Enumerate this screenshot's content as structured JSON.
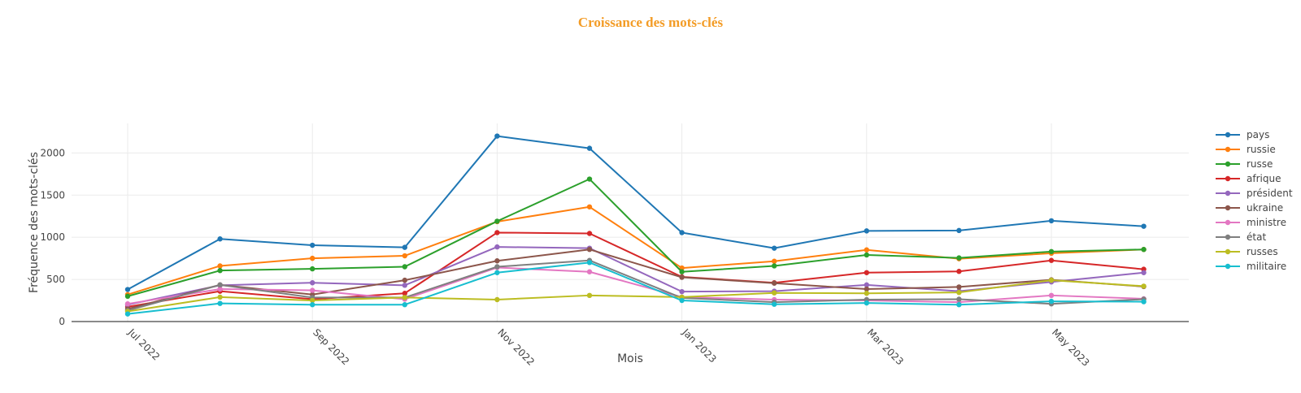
{
  "title": "Croissance des mots-clés",
  "colors": {
    "title": "#f39c26",
    "grid": "#ebebeb",
    "axis": "#444444",
    "series": [
      "#1f77b4",
      "#ff7f0e",
      "#2ca02c",
      "#d62728",
      "#9467bd",
      "#8c564b",
      "#e377c2",
      "#7f7f7f",
      "#bcbd22",
      "#17becf"
    ]
  },
  "chart_data": {
    "type": "line",
    "xlabel": "Mois",
    "ylabel": "Fréquence des mots-clés",
    "ylim": [
      0,
      2350
    ],
    "yticks": [
      0,
      500,
      1000,
      1500,
      2000
    ],
    "x": [
      "2022-07",
      "2022-08",
      "2022-09",
      "2022-10",
      "2022-11",
      "2022-12",
      "2023-01",
      "2023-02",
      "2023-03",
      "2023-04",
      "2023-05",
      "2023-06"
    ],
    "xticks": [
      {
        "month": "2022-07",
        "label": "Jul 2022"
      },
      {
        "month": "2022-09",
        "label": "Sep 2022"
      },
      {
        "month": "2022-11",
        "label": "Nov 2022"
      },
      {
        "month": "2023-01",
        "label": "Jan 2023"
      },
      {
        "month": "2023-03",
        "label": "Mar 2023"
      },
      {
        "month": "2023-05",
        "label": "May 2023"
      }
    ],
    "legend_position": "right",
    "grid": true,
    "series": [
      {
        "name": "pays",
        "values": [
          380,
          980,
          905,
          880,
          2200,
          2055,
          1055,
          870,
          1075,
          1080,
          1195,
          1130
        ]
      },
      {
        "name": "russie",
        "values": [
          320,
          660,
          750,
          780,
          1185,
          1360,
          635,
          715,
          850,
          745,
          810,
          855
        ]
      },
      {
        "name": "russe",
        "values": [
          300,
          605,
          625,
          650,
          1190,
          1690,
          590,
          660,
          790,
          755,
          830,
          855
        ]
      },
      {
        "name": "afrique",
        "values": [
          175,
          360,
          265,
          335,
          1055,
          1045,
          530,
          460,
          580,
          595,
          725,
          620
        ]
      },
      {
        "name": "président",
        "values": [
          200,
          430,
          460,
          430,
          885,
          870,
          355,
          360,
          435,
          360,
          470,
          580
        ]
      },
      {
        "name": "ukraine",
        "values": [
          150,
          435,
          320,
          490,
          720,
          855,
          525,
          455,
          385,
          410,
          495,
          415
        ]
      },
      {
        "name": "ministre",
        "values": [
          210,
          385,
          370,
          265,
          640,
          590,
          290,
          260,
          250,
          230,
          310,
          270
        ]
      },
      {
        "name": "état",
        "values": [
          130,
          435,
          285,
          285,
          650,
          725,
          280,
          230,
          260,
          265,
          210,
          265
        ]
      },
      {
        "name": "russes",
        "values": [
          120,
          290,
          250,
          285,
          260,
          310,
          290,
          340,
          335,
          345,
          490,
          420
        ]
      },
      {
        "name": "militaire",
        "values": [
          90,
          215,
          200,
          200,
          580,
          700,
          250,
          205,
          220,
          200,
          240,
          235
        ]
      }
    ]
  }
}
